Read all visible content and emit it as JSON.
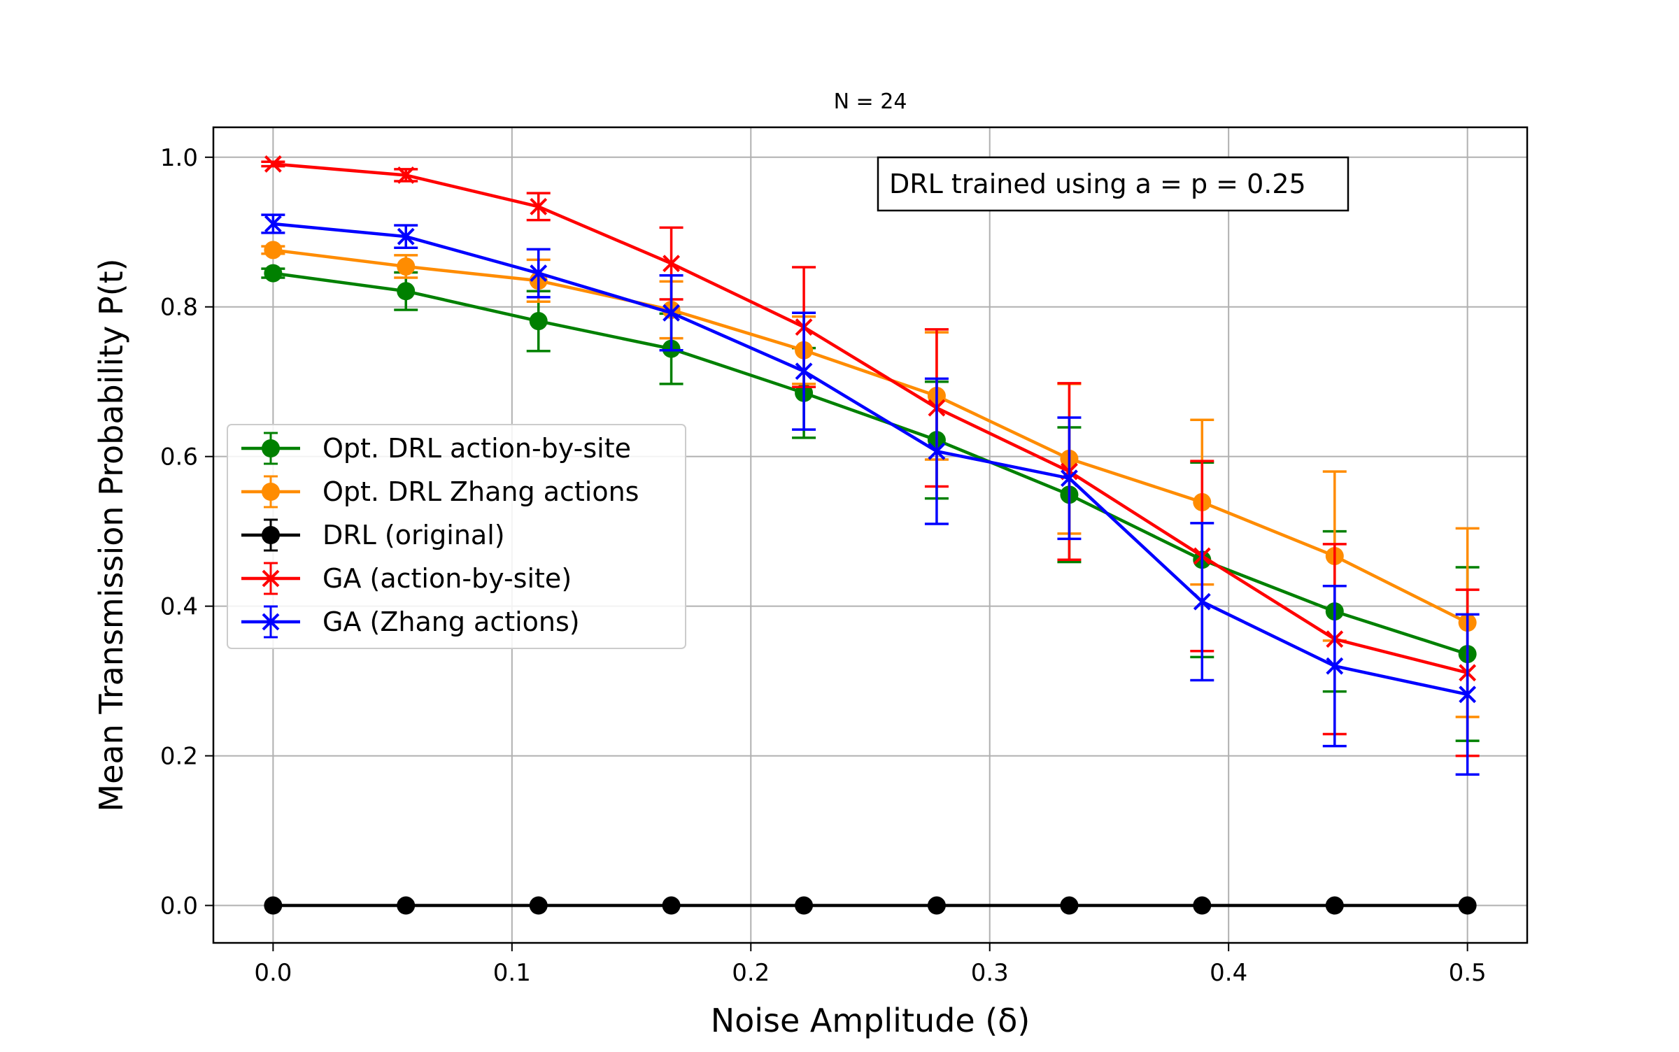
{
  "chart_data": {
    "type": "line",
    "title": "N = 24",
    "xlabel": "Noise Amplitude (δ)",
    "ylabel": "Mean Transmission Probability P(t)",
    "xlim": [
      -0.025,
      0.525
    ],
    "ylim": [
      -0.05,
      1.04
    ],
    "xticks": [
      0.0,
      0.1,
      0.2,
      0.3,
      0.4,
      0.5
    ],
    "xtick_labels": [
      "0.0",
      "0.1",
      "0.2",
      "0.3",
      "0.4",
      "0.5"
    ],
    "yticks": [
      0.0,
      0.2,
      0.4,
      0.6,
      0.8,
      1.0
    ],
    "ytick_labels": [
      "0.0",
      "0.2",
      "0.4",
      "0.6",
      "0.8",
      "1.0"
    ],
    "grid": true,
    "legend_position": "center-left",
    "annotation": "DRL trained using a = p = 0.25",
    "x": [
      0.0,
      0.0556,
      0.1111,
      0.1667,
      0.2222,
      0.2778,
      0.3333,
      0.3889,
      0.4444,
      0.5
    ],
    "series": [
      {
        "name": "Opt. DRL action-by-site",
        "color": "#008000",
        "marker": "circle",
        "values": [
          0.845,
          0.821,
          0.781,
          0.744,
          0.685,
          0.622,
          0.549,
          0.462,
          0.393,
          0.336
        ],
        "err": [
          0.006,
          0.025,
          0.04,
          0.047,
          0.06,
          0.078,
          0.09,
          0.13,
          0.107,
          0.116
        ]
      },
      {
        "name": "Opt. DRL Zhang actions",
        "color": "#ff8c00",
        "marker": "circle",
        "values": [
          0.876,
          0.854,
          0.835,
          0.796,
          0.742,
          0.681,
          0.597,
          0.539,
          0.467,
          0.378
        ],
        "err": [
          0.005,
          0.015,
          0.028,
          0.038,
          0.045,
          0.085,
          0.1,
          0.11,
          0.113,
          0.126
        ]
      },
      {
        "name": "DRL (original)",
        "color": "#000000",
        "marker": "circle",
        "values": [
          0.0,
          0.0,
          0.0,
          0.0,
          0.0,
          0.0,
          0.0,
          0.0,
          0.0,
          0.0
        ],
        "err": [
          0,
          0,
          0,
          0,
          0,
          0,
          0,
          0,
          0,
          0
        ]
      },
      {
        "name": "GA (action-by-site)",
        "color": "#ff0000",
        "marker": "x",
        "values": [
          0.991,
          0.976,
          0.934,
          0.858,
          0.773,
          0.665,
          0.58,
          0.467,
          0.356,
          0.311
        ],
        "err": [
          0.003,
          0.008,
          0.018,
          0.048,
          0.08,
          0.105,
          0.118,
          0.127,
          0.127,
          0.111
        ]
      },
      {
        "name": "GA (Zhang actions)",
        "color": "#0000ff",
        "marker": "x",
        "values": [
          0.911,
          0.894,
          0.845,
          0.792,
          0.714,
          0.607,
          0.571,
          0.406,
          0.32,
          0.282
        ],
        "err": [
          0.012,
          0.015,
          0.032,
          0.05,
          0.078,
          0.097,
          0.081,
          0.105,
          0.107,
          0.107
        ]
      }
    ]
  }
}
